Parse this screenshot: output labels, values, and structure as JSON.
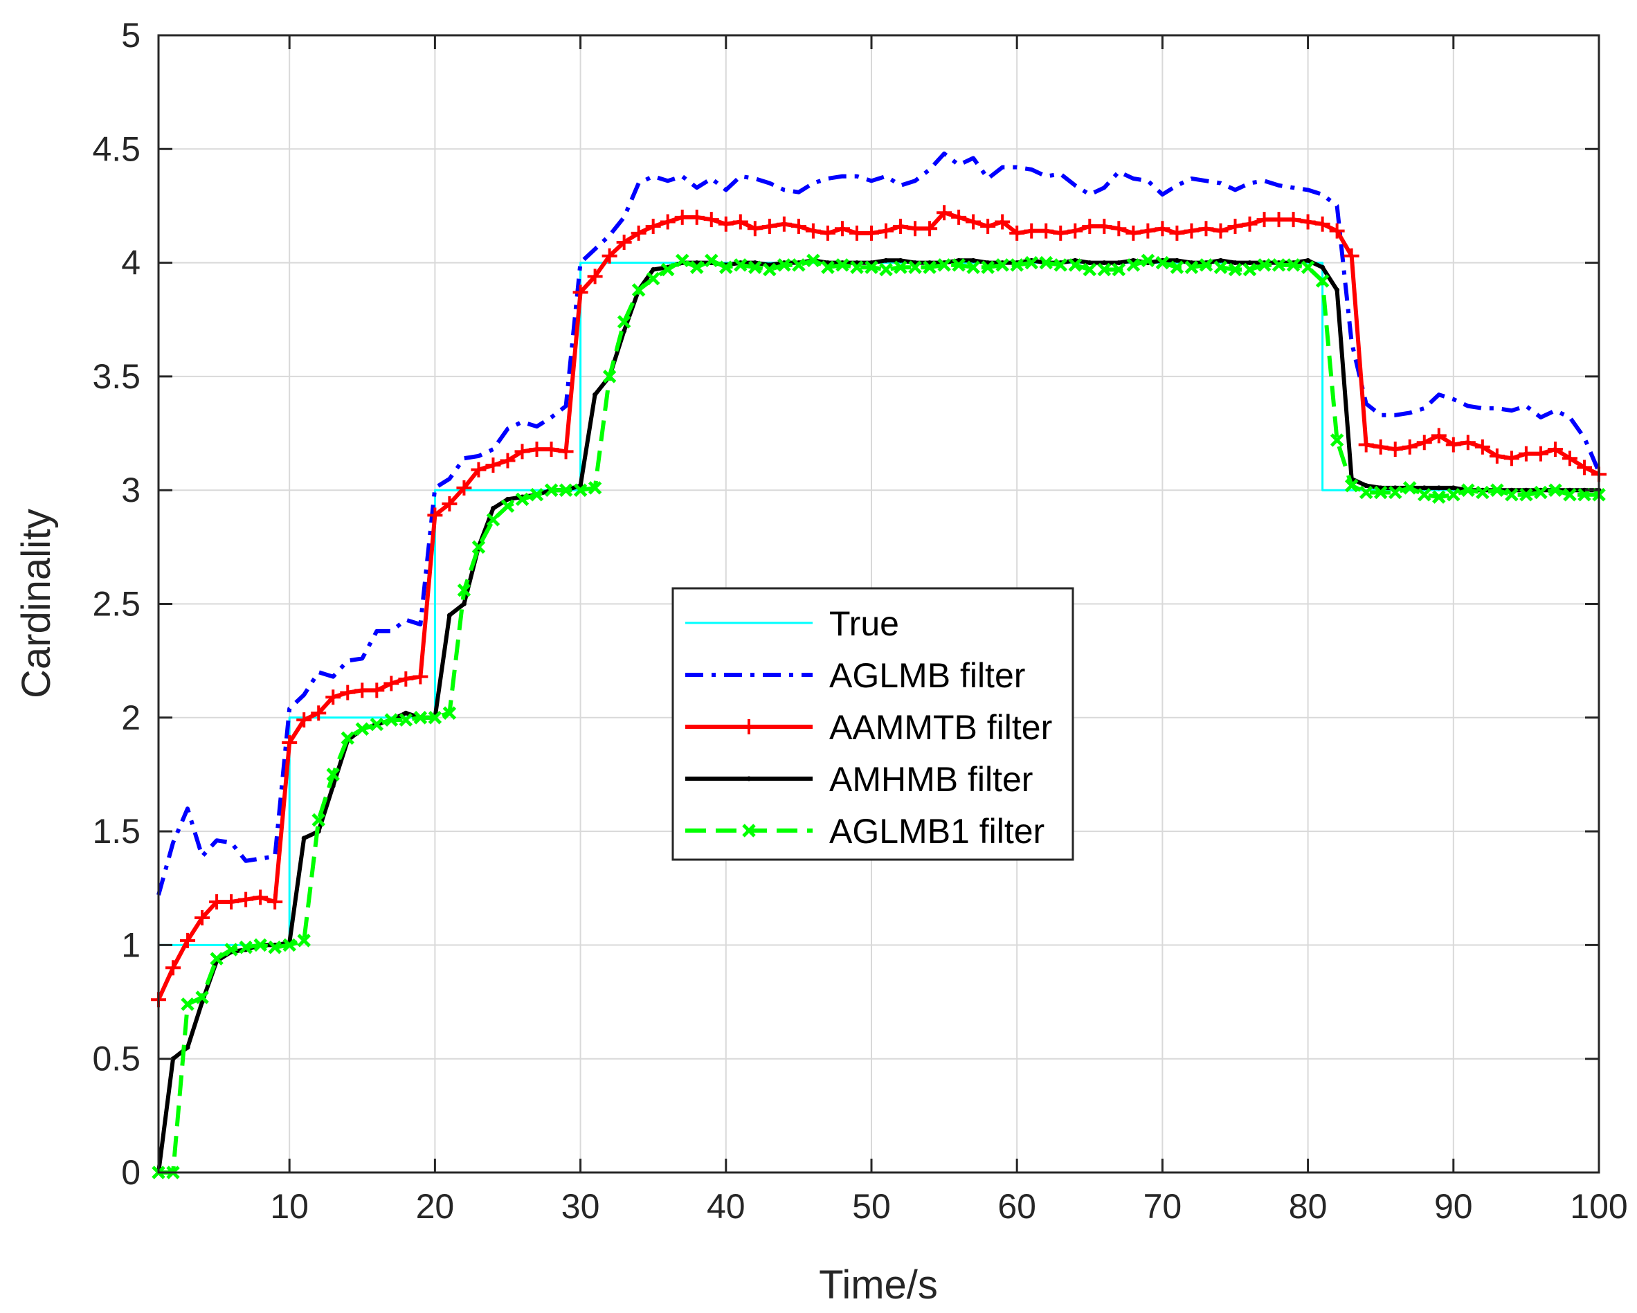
{
  "chart_data": {
    "type": "line",
    "xlabel": "Time/s",
    "ylabel": "Cardinality",
    "xlim": [
      1,
      100
    ],
    "ylim": [
      0,
      5
    ],
    "xticks": [
      10,
      20,
      30,
      40,
      50,
      60,
      70,
      80,
      90,
      100
    ],
    "yticks": [
      0,
      0.5,
      1,
      1.5,
      2,
      2.5,
      3,
      3.5,
      4,
      4.5,
      5
    ],
    "grid": true,
    "legend_position": "center",
    "series": [
      {
        "name": "True",
        "color": "#00ffff",
        "style": "solid",
        "marker": "none",
        "x": [
          1,
          10,
          10,
          20,
          20,
          30,
          30,
          81,
          81,
          100
        ],
        "y": [
          1,
          1,
          2,
          2,
          3,
          3,
          4,
          4,
          3,
          3
        ]
      },
      {
        "name": "AGLMB filter",
        "color": "#0000ff",
        "style": "dashdot",
        "marker": "none",
        "x": [
          1,
          2,
          3,
          4,
          5,
          6,
          7,
          8,
          9,
          10,
          11,
          12,
          13,
          14,
          15,
          16,
          17,
          18,
          19,
          20,
          21,
          22,
          23,
          24,
          25,
          26,
          27,
          28,
          29,
          30,
          31,
          32,
          33,
          34,
          35,
          36,
          37,
          38,
          39,
          40,
          41,
          42,
          43,
          44,
          45,
          46,
          47,
          48,
          49,
          50,
          51,
          52,
          53,
          54,
          55,
          56,
          57,
          58,
          59,
          60,
          61,
          62,
          63,
          64,
          65,
          66,
          67,
          68,
          69,
          70,
          71,
          72,
          73,
          74,
          75,
          76,
          77,
          78,
          79,
          80,
          81,
          82,
          83,
          84,
          85,
          86,
          87,
          88,
          89,
          90,
          91,
          92,
          93,
          94,
          95,
          96,
          97,
          98,
          99,
          100
        ],
        "y": [
          1.22,
          1.45,
          1.6,
          1.39,
          1.46,
          1.45,
          1.37,
          1.38,
          1.39,
          2.04,
          2.1,
          2.2,
          2.18,
          2.25,
          2.26,
          2.38,
          2.38,
          2.43,
          2.41,
          3.01,
          3.05,
          3.14,
          3.15,
          3.18,
          3.27,
          3.3,
          3.28,
          3.32,
          3.37,
          4.0,
          4.06,
          4.12,
          4.2,
          4.35,
          4.38,
          4.36,
          4.38,
          4.33,
          4.37,
          4.32,
          4.38,
          4.37,
          4.35,
          4.32,
          4.31,
          4.35,
          4.37,
          4.38,
          4.38,
          4.36,
          4.38,
          4.34,
          4.36,
          4.41,
          4.48,
          4.43,
          4.46,
          4.37,
          4.42,
          4.42,
          4.41,
          4.38,
          4.39,
          4.34,
          4.3,
          4.33,
          4.4,
          4.37,
          4.36,
          4.3,
          4.34,
          4.37,
          4.36,
          4.35,
          4.32,
          4.35,
          4.36,
          4.34,
          4.33,
          4.32,
          4.3,
          4.25,
          3.65,
          3.38,
          3.33,
          3.33,
          3.34,
          3.36,
          3.42,
          3.4,
          3.37,
          3.36,
          3.36,
          3.35,
          3.37,
          3.32,
          3.35,
          3.32,
          3.23,
          3.08
        ]
      },
      {
        "name": "AAMMTB filter",
        "color": "#ff0000",
        "style": "solid",
        "marker": "plus",
        "x": [
          1,
          2,
          3,
          4,
          5,
          6,
          7,
          8,
          9,
          10,
          11,
          12,
          13,
          14,
          15,
          16,
          17,
          18,
          19,
          20,
          21,
          22,
          23,
          24,
          25,
          26,
          27,
          28,
          29,
          30,
          31,
          32,
          33,
          34,
          35,
          36,
          37,
          38,
          39,
          40,
          41,
          42,
          43,
          44,
          45,
          46,
          47,
          48,
          49,
          50,
          51,
          52,
          53,
          54,
          55,
          56,
          57,
          58,
          59,
          60,
          61,
          62,
          63,
          64,
          65,
          66,
          67,
          68,
          69,
          70,
          71,
          72,
          73,
          74,
          75,
          76,
          77,
          78,
          79,
          80,
          81,
          82,
          83,
          84,
          85,
          86,
          87,
          88,
          89,
          90,
          91,
          92,
          93,
          94,
          95,
          96,
          97,
          98,
          99,
          100
        ],
        "y": [
          0.76,
          0.9,
          1.02,
          1.12,
          1.19,
          1.19,
          1.2,
          1.21,
          1.19,
          1.89,
          1.99,
          2.02,
          2.09,
          2.11,
          2.12,
          2.12,
          2.15,
          2.17,
          2.18,
          2.89,
          2.94,
          3.01,
          3.09,
          3.11,
          3.13,
          3.17,
          3.18,
          3.18,
          3.17,
          3.87,
          3.94,
          4.03,
          4.09,
          4.13,
          4.16,
          4.18,
          4.2,
          4.2,
          4.19,
          4.17,
          4.18,
          4.15,
          4.16,
          4.17,
          4.16,
          4.14,
          4.13,
          4.15,
          4.13,
          4.13,
          4.14,
          4.16,
          4.15,
          4.15,
          4.22,
          4.2,
          4.18,
          4.16,
          4.18,
          4.13,
          4.14,
          4.14,
          4.13,
          4.14,
          4.16,
          4.16,
          4.15,
          4.13,
          4.14,
          4.15,
          4.13,
          4.14,
          4.15,
          4.14,
          4.16,
          4.17,
          4.19,
          4.19,
          4.19,
          4.18,
          4.17,
          4.14,
          4.03,
          3.2,
          3.19,
          3.18,
          3.19,
          3.21,
          3.24,
          3.2,
          3.21,
          3.19,
          3.15,
          3.14,
          3.16,
          3.16,
          3.18,
          3.14,
          3.1,
          3.07
        ]
      },
      {
        "name": "AMHMB filter",
        "color": "#000000",
        "style": "solid",
        "marker": "dot",
        "x": [
          1,
          2,
          3,
          4,
          5,
          6,
          7,
          8,
          9,
          10,
          11,
          12,
          13,
          14,
          15,
          16,
          17,
          18,
          19,
          20,
          21,
          22,
          23,
          24,
          25,
          26,
          27,
          28,
          29,
          30,
          31,
          32,
          33,
          34,
          35,
          36,
          37,
          38,
          39,
          40,
          41,
          42,
          43,
          44,
          45,
          46,
          47,
          48,
          49,
          50,
          51,
          52,
          53,
          54,
          55,
          56,
          57,
          58,
          59,
          60,
          61,
          62,
          63,
          64,
          65,
          66,
          67,
          68,
          69,
          70,
          71,
          72,
          73,
          74,
          75,
          76,
          77,
          78,
          79,
          80,
          81,
          82,
          83,
          84,
          85,
          86,
          87,
          88,
          89,
          90,
          91,
          92,
          93,
          94,
          95,
          96,
          97,
          98,
          99,
          100
        ],
        "y": [
          0.0,
          0.5,
          0.55,
          0.75,
          0.93,
          0.97,
          0.98,
          1.0,
          1.0,
          1.01,
          1.47,
          1.5,
          1.7,
          1.9,
          1.95,
          1.97,
          1.99,
          2.02,
          2.0,
          2.0,
          2.45,
          2.5,
          2.75,
          2.92,
          2.96,
          2.97,
          2.98,
          3.0,
          3.0,
          3.02,
          3.42,
          3.5,
          3.7,
          3.88,
          3.97,
          3.98,
          4.0,
          4.0,
          4.0,
          3.99,
          4.0,
          4.0,
          3.99,
          4.0,
          4.0,
          4.01,
          4.0,
          4.0,
          4.0,
          4.0,
          4.01,
          4.01,
          4.0,
          4.0,
          4.0,
          4.01,
          4.01,
          4.0,
          4.0,
          4.0,
          4.01,
          4.0,
          4.0,
          4.01,
          4.0,
          4.0,
          4.0,
          4.01,
          4.0,
          4.01,
          4.01,
          4.0,
          4.0,
          4.01,
          4.0,
          4.0,
          4.0,
          4.0,
          4.0,
          4.01,
          3.98,
          3.88,
          3.05,
          3.02,
          3.01,
          3.01,
          3.01,
          3.01,
          3.01,
          3.01,
          3.0,
          3.0,
          3.0,
          3.0,
          3.0,
          3.0,
          3.0,
          3.0,
          3.0,
          3.0
        ]
      },
      {
        "name": "AGLMB1 filter",
        "color": "#00ff00",
        "style": "dashed",
        "marker": "x",
        "x": [
          1,
          2,
          3,
          4,
          5,
          6,
          7,
          8,
          9,
          10,
          11,
          12,
          13,
          14,
          15,
          16,
          17,
          18,
          19,
          20,
          21,
          22,
          23,
          24,
          25,
          26,
          27,
          28,
          29,
          30,
          31,
          32,
          33,
          34,
          35,
          36,
          37,
          38,
          39,
          40,
          41,
          42,
          43,
          44,
          45,
          46,
          47,
          48,
          49,
          50,
          51,
          52,
          53,
          54,
          55,
          56,
          57,
          58,
          59,
          60,
          61,
          62,
          63,
          64,
          65,
          66,
          67,
          68,
          69,
          70,
          71,
          72,
          73,
          74,
          75,
          76,
          77,
          78,
          79,
          80,
          81,
          82,
          83,
          84,
          85,
          86,
          87,
          88,
          89,
          90,
          91,
          92,
          93,
          94,
          95,
          96,
          97,
          98,
          99,
          100
        ],
        "y": [
          0.0,
          0.0,
          0.74,
          0.77,
          0.94,
          0.98,
          0.99,
          1.0,
          0.99,
          1.0,
          1.02,
          1.55,
          1.75,
          1.91,
          1.95,
          1.97,
          1.99,
          1.99,
          2.0,
          2.0,
          2.02,
          2.56,
          2.75,
          2.87,
          2.93,
          2.96,
          2.98,
          3.0,
          3.0,
          3.0,
          3.01,
          3.5,
          3.74,
          3.88,
          3.93,
          3.97,
          4.01,
          3.98,
          4.01,
          3.98,
          3.99,
          3.98,
          3.97,
          3.99,
          3.99,
          4.01,
          3.98,
          3.99,
          3.98,
          3.98,
          3.97,
          3.98,
          3.98,
          3.98,
          3.99,
          3.99,
          3.98,
          3.98,
          3.99,
          3.99,
          4.0,
          4.0,
          3.99,
          3.99,
          3.97,
          3.97,
          3.97,
          3.99,
          4.01,
          4.0,
          3.98,
          3.98,
          3.99,
          3.98,
          3.97,
          3.97,
          3.99,
          3.99,
          3.99,
          3.98,
          3.92,
          3.22,
          3.02,
          2.99,
          2.99,
          2.99,
          3.01,
          2.98,
          2.97,
          2.98,
          3.0,
          2.99,
          3.0,
          2.98,
          2.98,
          2.99,
          3.0,
          2.98,
          2.98,
          2.98
        ]
      }
    ]
  }
}
